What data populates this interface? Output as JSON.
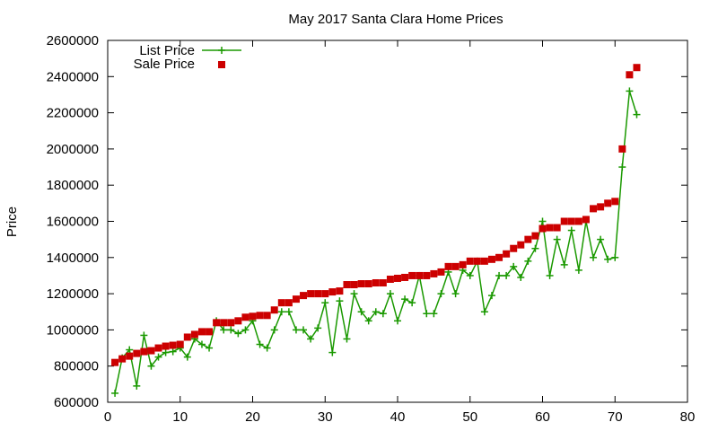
{
  "chart_data": {
    "type": "line",
    "title": "May 2017 Santa Clara Home Prices",
    "xlabel": "",
    "ylabel": "Price",
    "xlim": [
      0,
      80
    ],
    "ylim": [
      600000,
      2600000
    ],
    "x_ticks": [
      "0",
      "10",
      "20",
      "30",
      "40",
      "50",
      "60",
      "70",
      "80"
    ],
    "y_ticks": [
      "600000",
      "800000",
      "1000000",
      "1200000",
      "1400000",
      "1600000",
      "1800000",
      "2000000",
      "2200000",
      "2400000",
      "2600000"
    ],
    "grid": false,
    "legend_position": "top-left",
    "x": [
      1,
      2,
      3,
      4,
      5,
      6,
      7,
      8,
      9,
      10,
      11,
      12,
      13,
      14,
      15,
      16,
      17,
      18,
      19,
      20,
      21,
      22,
      23,
      24,
      25,
      26,
      27,
      28,
      29,
      30,
      31,
      32,
      33,
      34,
      35,
      36,
      37,
      38,
      39,
      40,
      41,
      42,
      43,
      44,
      45,
      46,
      47,
      48,
      49,
      50,
      51,
      52,
      53,
      54,
      55,
      56,
      57,
      58,
      59,
      60,
      61,
      62,
      63,
      64,
      65,
      66,
      67,
      68,
      69,
      70,
      71,
      72,
      73
    ],
    "series": [
      {
        "name": "List Price",
        "style": "lines+plus",
        "color": "#1a9900",
        "values": [
          650000,
          845000,
          890000,
          690000,
          970000,
          800000,
          850000,
          875000,
          880000,
          900000,
          850000,
          950000,
          920000,
          900000,
          1050000,
          1000000,
          1000000,
          980000,
          1000000,
          1050000,
          920000,
          900000,
          1000000,
          1100000,
          1100000,
          1000000,
          1000000,
          950000,
          1010000,
          1150000,
          875000,
          1160000,
          950000,
          1200000,
          1100000,
          1050000,
          1100000,
          1090000,
          1200000,
          1050000,
          1170000,
          1150000,
          1300000,
          1090000,
          1090000,
          1200000,
          1320000,
          1200000,
          1330000,
          1300000,
          1380000,
          1100000,
          1190000,
          1300000,
          1300000,
          1350000,
          1290000,
          1380000,
          1450000,
          1600000,
          1300000,
          1500000,
          1360000,
          1550000,
          1330000,
          1600000,
          1400000,
          1500000,
          1390000,
          1400000,
          1900000,
          2320000,
          2190000
        ]
      },
      {
        "name": "Sale Price",
        "style": "points+square",
        "color": "#cc0000",
        "values": [
          820000,
          840000,
          855000,
          870000,
          880000,
          885000,
          900000,
          910000,
          915000,
          920000,
          960000,
          975000,
          990000,
          990000,
          1040000,
          1040000,
          1040000,
          1050000,
          1070000,
          1075000,
          1080000,
          1080000,
          1110000,
          1150000,
          1150000,
          1170000,
          1190000,
          1200000,
          1200000,
          1200000,
          1210000,
          1215000,
          1250000,
          1250000,
          1255000,
          1255000,
          1260000,
          1260000,
          1280000,
          1285000,
          1290000,
          1300000,
          1300000,
          1300000,
          1310000,
          1320000,
          1350000,
          1350000,
          1360000,
          1380000,
          1380000,
          1380000,
          1390000,
          1400000,
          1420000,
          1450000,
          1470000,
          1500000,
          1520000,
          1560000,
          1565000,
          1565000,
          1600000,
          1600000,
          1600000,
          1610000,
          1670000,
          1680000,
          1700000,
          1710000,
          2000000,
          2410000,
          2450000
        ]
      }
    ]
  }
}
